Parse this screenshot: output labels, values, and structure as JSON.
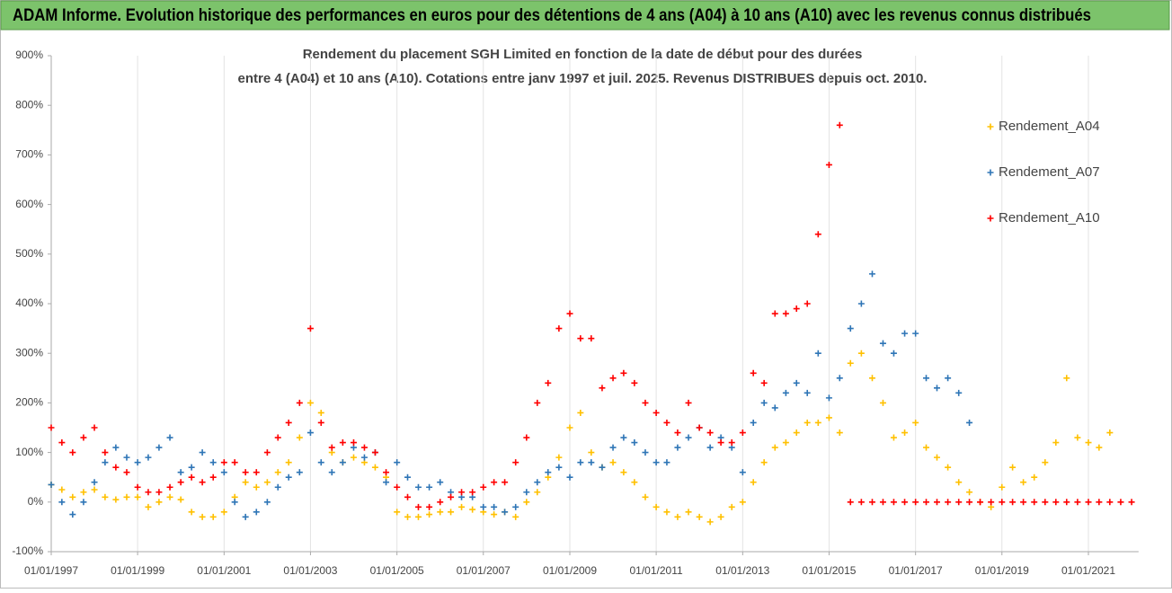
{
  "chart_data": {
    "type": "scatter",
    "title": "ADAM Informe. Evolution historique des performances en euros pour des détentions de 4 ans (A04) à 10 ans (A10) avec les revenus connus distribués",
    "subtitle": [
      "Rendement du placement SGH Limited en fonction de la date de début pour des durées",
      "entre 4 (A04) et 10 ans (A10). Cotations entre janv 1997 et juil. 2025. Revenus DISTRIBUES depuis oct. 2010."
    ],
    "x": [
      "01/01/1997",
      "01/04/1997",
      "01/07/1997",
      "01/10/1997",
      "01/01/1998",
      "01/04/1998",
      "01/07/1998",
      "01/10/1998",
      "01/01/1999",
      "01/04/1999",
      "01/07/1999",
      "01/10/1999",
      "01/01/2000",
      "01/04/2000",
      "01/07/2000",
      "01/10/2000",
      "01/01/2001",
      "01/04/2001",
      "01/07/2001",
      "01/10/2001",
      "01/01/2002",
      "01/04/2002",
      "01/07/2002",
      "01/10/2002",
      "01/01/2003",
      "01/04/2003",
      "01/07/2003",
      "01/10/2003",
      "01/01/2004",
      "01/04/2004",
      "01/07/2004",
      "01/10/2004",
      "01/01/2005",
      "01/04/2005",
      "01/07/2005",
      "01/10/2005",
      "01/01/2006",
      "01/04/2006",
      "01/07/2006",
      "01/10/2006",
      "01/01/2007",
      "01/04/2007",
      "01/07/2007",
      "01/10/2007",
      "01/01/2008",
      "01/04/2008",
      "01/07/2008",
      "01/10/2008",
      "01/01/2009",
      "01/04/2009",
      "01/07/2009",
      "01/10/2009",
      "01/01/2010",
      "01/04/2010",
      "01/07/2010",
      "01/10/2010",
      "01/01/2011",
      "01/04/2011",
      "01/07/2011",
      "01/10/2011",
      "01/01/2012",
      "01/04/2012",
      "01/07/2012",
      "01/10/2012",
      "01/01/2013",
      "01/04/2013",
      "01/07/2013",
      "01/10/2013",
      "01/01/2014",
      "01/04/2014",
      "01/07/2014",
      "01/10/2014",
      "01/01/2015",
      "01/04/2015",
      "01/07/2015",
      "01/10/2015",
      "01/01/2016",
      "01/04/2016",
      "01/07/2016",
      "01/10/2016",
      "01/01/2017",
      "01/04/2017",
      "01/07/2017",
      "01/10/2017",
      "01/01/2018",
      "01/04/2018",
      "01/07/2018",
      "01/10/2018",
      "01/01/2019",
      "01/04/2019",
      "01/07/2019",
      "01/10/2019",
      "01/01/2020",
      "01/04/2020",
      "01/07/2020",
      "01/10/2020",
      "01/01/2021",
      "01/04/2021",
      "01/07/2021",
      "01/10/2021",
      "01/01/2022"
    ],
    "series": [
      {
        "name": "Rendement_A04",
        "color": "#ffc000",
        "values": [
          35,
          25,
          10,
          20,
          25,
          10,
          5,
          10,
          10,
          -10,
          0,
          10,
          5,
          -20,
          -30,
          -30,
          -20,
          10,
          40,
          30,
          40,
          60,
          80,
          130,
          200,
          180,
          100,
          80,
          90,
          80,
          70,
          50,
          -20,
          -30,
          -30,
          -25,
          -20,
          -20,
          -10,
          -15,
          -20,
          -25,
          -20,
          -30,
          0,
          20,
          50,
          90,
          150,
          180,
          100,
          70,
          80,
          60,
          40,
          10,
          -10,
          -20,
          -30,
          -20,
          -30,
          -40,
          -30,
          -10,
          0,
          40,
          80,
          110,
          120,
          140,
          160,
          160,
          170,
          140,
          280,
          300,
          250,
          200,
          130,
          140,
          160,
          110,
          90,
          70,
          40,
          20,
          0,
          -10,
          30,
          70,
          40,
          50,
          80,
          120,
          250,
          130,
          120,
          110,
          140,
          null,
          null
        ]
      },
      {
        "name": "Rendement_A07",
        "color": "#2e75b6",
        "values": [
          35,
          0,
          -25,
          0,
          40,
          80,
          110,
          90,
          80,
          90,
          110,
          130,
          60,
          70,
          100,
          80,
          60,
          0,
          -30,
          -20,
          0,
          30,
          50,
          60,
          140,
          80,
          60,
          80,
          110,
          90,
          100,
          40,
          80,
          50,
          30,
          30,
          40,
          20,
          10,
          10,
          -10,
          -10,
          -20,
          -10,
          20,
          40,
          60,
          70,
          50,
          80,
          80,
          70,
          110,
          130,
          120,
          100,
          80,
          80,
          110,
          130,
          150,
          110,
          130,
          110,
          60,
          160,
          200,
          190,
          220,
          240,
          220,
          300,
          210,
          250,
          350,
          400,
          460,
          320,
          300,
          340,
          340,
          250,
          230,
          250,
          220,
          160,
          null,
          null,
          null,
          null,
          null,
          null,
          null,
          null,
          null,
          null,
          null,
          null,
          null,
          null,
          null
        ]
      },
      {
        "name": "Rendement_A10",
        "color": "#ff0000",
        "values": [
          150,
          120,
          100,
          130,
          150,
          100,
          70,
          60,
          30,
          20,
          20,
          30,
          40,
          50,
          40,
          50,
          80,
          80,
          60,
          60,
          100,
          130,
          160,
          200,
          350,
          160,
          110,
          120,
          120,
          110,
          100,
          60,
          30,
          10,
          -10,
          -10,
          0,
          10,
          20,
          20,
          30,
          40,
          40,
          80,
          130,
          200,
          240,
          350,
          380,
          330,
          330,
          230,
          250,
          260,
          240,
          200,
          180,
          160,
          140,
          200,
          150,
          140,
          120,
          120,
          140,
          260,
          240,
          380,
          380,
          390,
          400,
          540,
          680,
          760,
          0,
          0,
          0,
          0,
          0,
          0,
          0,
          0,
          0,
          0,
          0,
          0,
          0,
          0,
          0,
          0,
          0,
          0,
          0,
          0,
          0,
          0,
          0,
          0,
          0,
          0,
          0
        ]
      }
    ],
    "xlim": [
      "01/01/1997",
      "01/03/2022"
    ],
    "xticks": [
      "01/01/1997",
      "01/01/1999",
      "01/01/2001",
      "01/01/2003",
      "01/01/2005",
      "01/01/2007",
      "01/01/2009",
      "01/01/2011",
      "01/01/2013",
      "01/01/2015",
      "01/01/2017",
      "01/01/2019",
      "01/01/2021"
    ],
    "ylim": [
      -100,
      900
    ],
    "yticks": [
      {
        "value": -100,
        "label": "-100%"
      },
      {
        "value": 0,
        "label": "0%"
      },
      {
        "value": 100,
        "label": "100%"
      },
      {
        "value": 200,
        "label": "200%"
      },
      {
        "value": 300,
        "label": "300%"
      },
      {
        "value": 400,
        "label": "400%"
      },
      {
        "value": 500,
        "label": "500%"
      },
      {
        "value": 600,
        "label": "600%"
      },
      {
        "value": 700,
        "label": "700%"
      },
      {
        "value": 800,
        "label": "800%"
      },
      {
        "value": 900,
        "label": "900%"
      }
    ],
    "grid": "x",
    "legend": "right"
  }
}
